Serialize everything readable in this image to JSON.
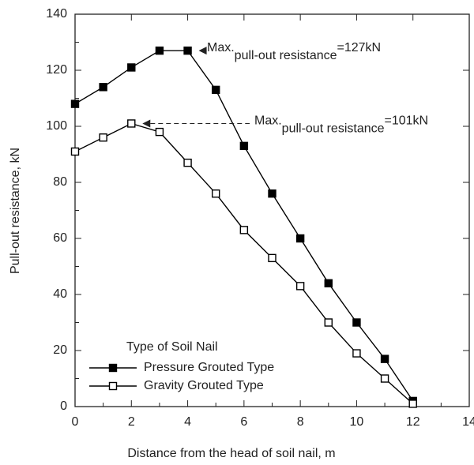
{
  "chart_data": {
    "type": "line",
    "x_label": "Distance from the head of soil nail, m",
    "y_label": "Pull-out resistance, kN",
    "x": [
      0,
      1,
      2,
      3,
      4,
      5,
      6,
      7,
      8,
      9,
      10,
      11,
      12
    ],
    "series": [
      {
        "name": "Pressure Grouted Type",
        "color": "#000000",
        "marker": "filled-square",
        "values": [
          108,
          114,
          121,
          127,
          127,
          113,
          93,
          76,
          60,
          44,
          30,
          17,
          2
        ]
      },
      {
        "name": "Gravity Grouted Type",
        "color": "#000000",
        "marker": "open-square",
        "values": [
          91,
          96,
          101,
          98,
          87,
          76,
          63,
          53,
          43,
          30,
          19,
          10,
          1
        ]
      }
    ],
    "xlim": [
      0,
      14
    ],
    "xticks": [
      0,
      2,
      4,
      6,
      8,
      10,
      12,
      14
    ],
    "xminorticks": [
      1,
      3,
      5,
      7,
      9,
      11,
      13
    ],
    "ylim": [
      0,
      140
    ],
    "yticks": [
      0,
      20,
      40,
      60,
      80,
      100,
      120,
      140
    ],
    "yminorticks": [
      10,
      30,
      50,
      70,
      90,
      110,
      130
    ],
    "legend_title": "Type of Soil Nail",
    "annotations": [
      {
        "text": "Max.",
        "sub": "pull-out resistance",
        "end": "=127kN",
        "series": 0,
        "index": 4
      },
      {
        "text": "Max.",
        "sub": "pull-out resistance",
        "end": "=101kN",
        "series": 1,
        "index": 2
      }
    ]
  }
}
